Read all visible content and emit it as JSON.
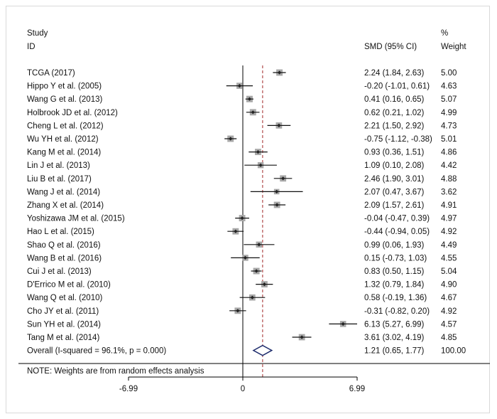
{
  "chart_data": {
    "type": "forest",
    "header": {
      "col1_line1": "Study",
      "col1_line2": "ID",
      "col2": "SMD (95% CI)",
      "col3_line1": "%",
      "col3_line2": "Weight"
    },
    "studies": [
      {
        "label": "TCGA (2017)",
        "smd": 2.24,
        "lo": 1.84,
        "hi": 2.63,
        "ci_text": "2.24 (1.84, 2.63)",
        "weight": 5.0,
        "weight_text": "5.00"
      },
      {
        "label": "Hippo Y et al. (2005)",
        "smd": -0.2,
        "lo": -1.01,
        "hi": 0.61,
        "ci_text": "-0.20 (-1.01, 0.61)",
        "weight": 4.63,
        "weight_text": "4.63"
      },
      {
        "label": "Wang G et al. (2013)",
        "smd": 0.41,
        "lo": 0.16,
        "hi": 0.65,
        "ci_text": "0.41 (0.16, 0.65)",
        "weight": 5.07,
        "weight_text": "5.07"
      },
      {
        "label": "Holbrook JD et al. (2012)",
        "smd": 0.62,
        "lo": 0.21,
        "hi": 1.02,
        "ci_text": "0.62 (0.21, 1.02)",
        "weight": 4.99,
        "weight_text": "4.99"
      },
      {
        "label": "Cheng L et al. (2012)",
        "smd": 2.21,
        "lo": 1.5,
        "hi": 2.92,
        "ci_text": "2.21 (1.50, 2.92)",
        "weight": 4.73,
        "weight_text": "4.73"
      },
      {
        "label": "Wu YH et al. (2012)",
        "smd": -0.75,
        "lo": -1.12,
        "hi": -0.38,
        "ci_text": "-0.75 (-1.12, -0.38)",
        "weight": 5.01,
        "weight_text": "5.01"
      },
      {
        "label": "Kang M et al. (2014)",
        "smd": 0.93,
        "lo": 0.36,
        "hi": 1.51,
        "ci_text": "0.93 (0.36, 1.51)",
        "weight": 4.86,
        "weight_text": "4.86"
      },
      {
        "label": "Lin J et al. (2013)",
        "smd": 1.09,
        "lo": 0.1,
        "hi": 2.08,
        "ci_text": "1.09 (0.10, 2.08)",
        "weight": 4.42,
        "weight_text": "4.42"
      },
      {
        "label": "Liu B et al. (2017)",
        "smd": 2.46,
        "lo": 1.9,
        "hi": 3.01,
        "ci_text": "2.46 (1.90, 3.01)",
        "weight": 4.88,
        "weight_text": "4.88"
      },
      {
        "label": "Wang J et al. (2014)",
        "smd": 2.07,
        "lo": 0.47,
        "hi": 3.67,
        "ci_text": "2.07 (0.47, 3.67)",
        "weight": 3.62,
        "weight_text": "3.62"
      },
      {
        "label": "Zhang X et al. (2014)",
        "smd": 2.09,
        "lo": 1.57,
        "hi": 2.61,
        "ci_text": "2.09 (1.57, 2.61)",
        "weight": 4.91,
        "weight_text": "4.91"
      },
      {
        "label": "Yoshizawa JM et al. (2015)",
        "smd": -0.04,
        "lo": -0.47,
        "hi": 0.39,
        "ci_text": "-0.04 (-0.47, 0.39)",
        "weight": 4.97,
        "weight_text": "4.97"
      },
      {
        "label": "Hao L et al. (2015)",
        "smd": -0.44,
        "lo": -0.94,
        "hi": 0.05,
        "ci_text": "-0.44 (-0.94, 0.05)",
        "weight": 4.92,
        "weight_text": "4.92"
      },
      {
        "label": "Shao Q et al. (2016)",
        "smd": 0.99,
        "lo": 0.06,
        "hi": 1.93,
        "ci_text": "0.99 (0.06, 1.93)",
        "weight": 4.49,
        "weight_text": "4.49"
      },
      {
        "label": "Wang B et al. (2016)",
        "smd": 0.15,
        "lo": -0.73,
        "hi": 1.03,
        "ci_text": "0.15 (-0.73, 1.03)",
        "weight": 4.55,
        "weight_text": "4.55"
      },
      {
        "label": "Cui J et al. (2013)",
        "smd": 0.83,
        "lo": 0.5,
        "hi": 1.15,
        "ci_text": "0.83 (0.50, 1.15)",
        "weight": 5.04,
        "weight_text": "5.04"
      },
      {
        "label": "D'Errico M et al. (2010)",
        "smd": 1.32,
        "lo": 0.79,
        "hi": 1.84,
        "ci_text": "1.32 (0.79, 1.84)",
        "weight": 4.9,
        "weight_text": "4.90"
      },
      {
        "label": "Wang Q et al. (2010)",
        "smd": 0.58,
        "lo": -0.19,
        "hi": 1.36,
        "ci_text": "0.58 (-0.19, 1.36)",
        "weight": 4.67,
        "weight_text": "4.67"
      },
      {
        "label": "Cho JY et al. (2011)",
        "smd": -0.31,
        "lo": -0.82,
        "hi": 0.2,
        "ci_text": "-0.31 (-0.82, 0.20)",
        "weight": 4.92,
        "weight_text": "4.92"
      },
      {
        "label": "Sun YH et al. (2014)",
        "smd": 6.13,
        "lo": 5.27,
        "hi": 6.99,
        "ci_text": "6.13 (5.27, 6.99)",
        "weight": 4.57,
        "weight_text": "4.57"
      },
      {
        "label": "Tang M et al. (2014)",
        "smd": 3.61,
        "lo": 3.02,
        "hi": 4.19,
        "ci_text": "3.61 (3.02, 4.19)",
        "weight": 4.85,
        "weight_text": "4.85"
      }
    ],
    "overall": {
      "label": "Overall  (I-squared = 96.1%, p = 0.000)",
      "smd": 1.21,
      "lo": 0.65,
      "hi": 1.77,
      "ci_text": "1.21 (0.65, 1.77)",
      "weight_text": "100.00"
    },
    "note": "NOTE: Weights are from random effects analysis",
    "x_ticks": [
      -6.99,
      0,
      6.99
    ],
    "x_tick_labels": [
      "-6.99",
      "0",
      "6.99"
    ],
    "xlim": [
      -6.99,
      6.99
    ],
    "null_value": 0,
    "colors": {
      "square": "#a8a8a8",
      "point": "#222222",
      "ci_line": "#111111",
      "reference_line": "#000000",
      "overall_line": "#b04a4a",
      "diamond": "#1c2a6b"
    }
  }
}
